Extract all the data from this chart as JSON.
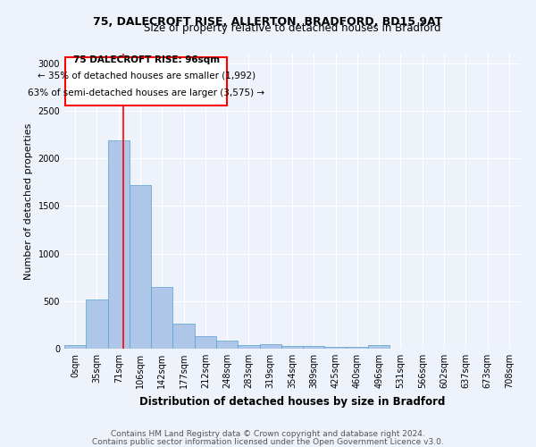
{
  "title_line1": "75, DALECROFT RISE, ALLERTON, BRADFORD, BD15 9AT",
  "title_line2": "Size of property relative to detached houses in Bradford",
  "xlabel": "Distribution of detached houses by size in Bradford",
  "ylabel": "Number of detached properties",
  "bar_labels": [
    "0sqm",
    "35sqm",
    "71sqm",
    "106sqm",
    "142sqm",
    "177sqm",
    "212sqm",
    "248sqm",
    "283sqm",
    "319sqm",
    "354sqm",
    "389sqm",
    "425sqm",
    "460sqm",
    "496sqm",
    "531sqm",
    "566sqm",
    "602sqm",
    "637sqm",
    "673sqm",
    "708sqm"
  ],
  "bar_values": [
    40,
    520,
    2190,
    1720,
    650,
    260,
    130,
    80,
    40,
    50,
    30,
    30,
    20,
    15,
    40,
    0,
    0,
    0,
    0,
    0,
    0
  ],
  "bar_color": "#aec6e8",
  "bar_edge_color": "#5a9fd4",
  "ylim": [
    0,
    3100
  ],
  "yticks": [
    0,
    500,
    1000,
    1500,
    2000,
    2500,
    3000
  ],
  "red_line_x": 2.72,
  "annotation_text_line1": "75 DALECROFT RISE: 96sqm",
  "annotation_text_line2": "← 35% of detached houses are smaller (1,992)",
  "annotation_text_line3": "63% of semi-detached houses are larger (3,575) →",
  "footer_line1": "Contains HM Land Registry data © Crown copyright and database right 2024.",
  "footer_line2": "Contains public sector information licensed under the Open Government Licence v3.0.",
  "background_color": "#eef2fa"
}
